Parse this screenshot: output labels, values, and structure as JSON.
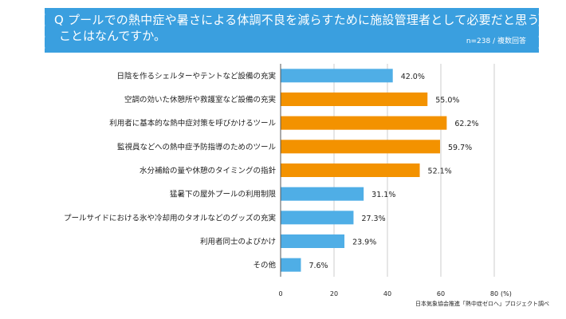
{
  "header": {
    "question_line1": "Q プールでの熱中症や暑さによる体調不良を減らすために施設管理者として必要だと思う",
    "question_line2": "ことはなんですか。",
    "note": "n=238 / 複数回答"
  },
  "source": "日本気象協会推進「熱中症ゼロへ」プロジェクト調べ",
  "chart_data": {
    "type": "bar",
    "orientation": "horizontal",
    "title": "Q プールでの熱中症や暑さによる体調不良を減らすために施設管理者として必要だと思うことはなんですか。",
    "categories": [
      "日陰を作るシェルターやテントなど設備の充実",
      "空調の効いた休憩所や救護室など設備の充実",
      "利用者に基本的な熱中症対策を呼びかけるツール",
      "監視員などへの熱中症予防指導のためのツール",
      "水分補給の量や休憩のタイミングの指針",
      "猛暑下の屋外プールの利用制限",
      "プールサイドにおける氷や冷却用のタオルなどのグッズの充実",
      "利用者同士のよびかけ",
      "その他"
    ],
    "values": [
      42.0,
      55.0,
      62.2,
      59.7,
      52.1,
      31.1,
      27.3,
      23.9,
      7.6
    ],
    "value_labels": [
      "42.0%",
      "55.0%",
      "62.2%",
      "59.7%",
      "52.1%",
      "31.1%",
      "27.3%",
      "23.9%",
      "7.6%"
    ],
    "highlight": [
      false,
      true,
      true,
      true,
      true,
      false,
      false,
      false,
      false
    ],
    "xlim": [
      0,
      80
    ],
    "xticks": [
      0,
      20,
      40,
      60,
      80
    ],
    "xlabel": "(%)",
    "grid": true,
    "colors": {
      "default": "#4faee6",
      "highlight": "#f39200",
      "grid": "#cccccc",
      "axis": "#555555",
      "banner": "#3a9fdf"
    }
  }
}
